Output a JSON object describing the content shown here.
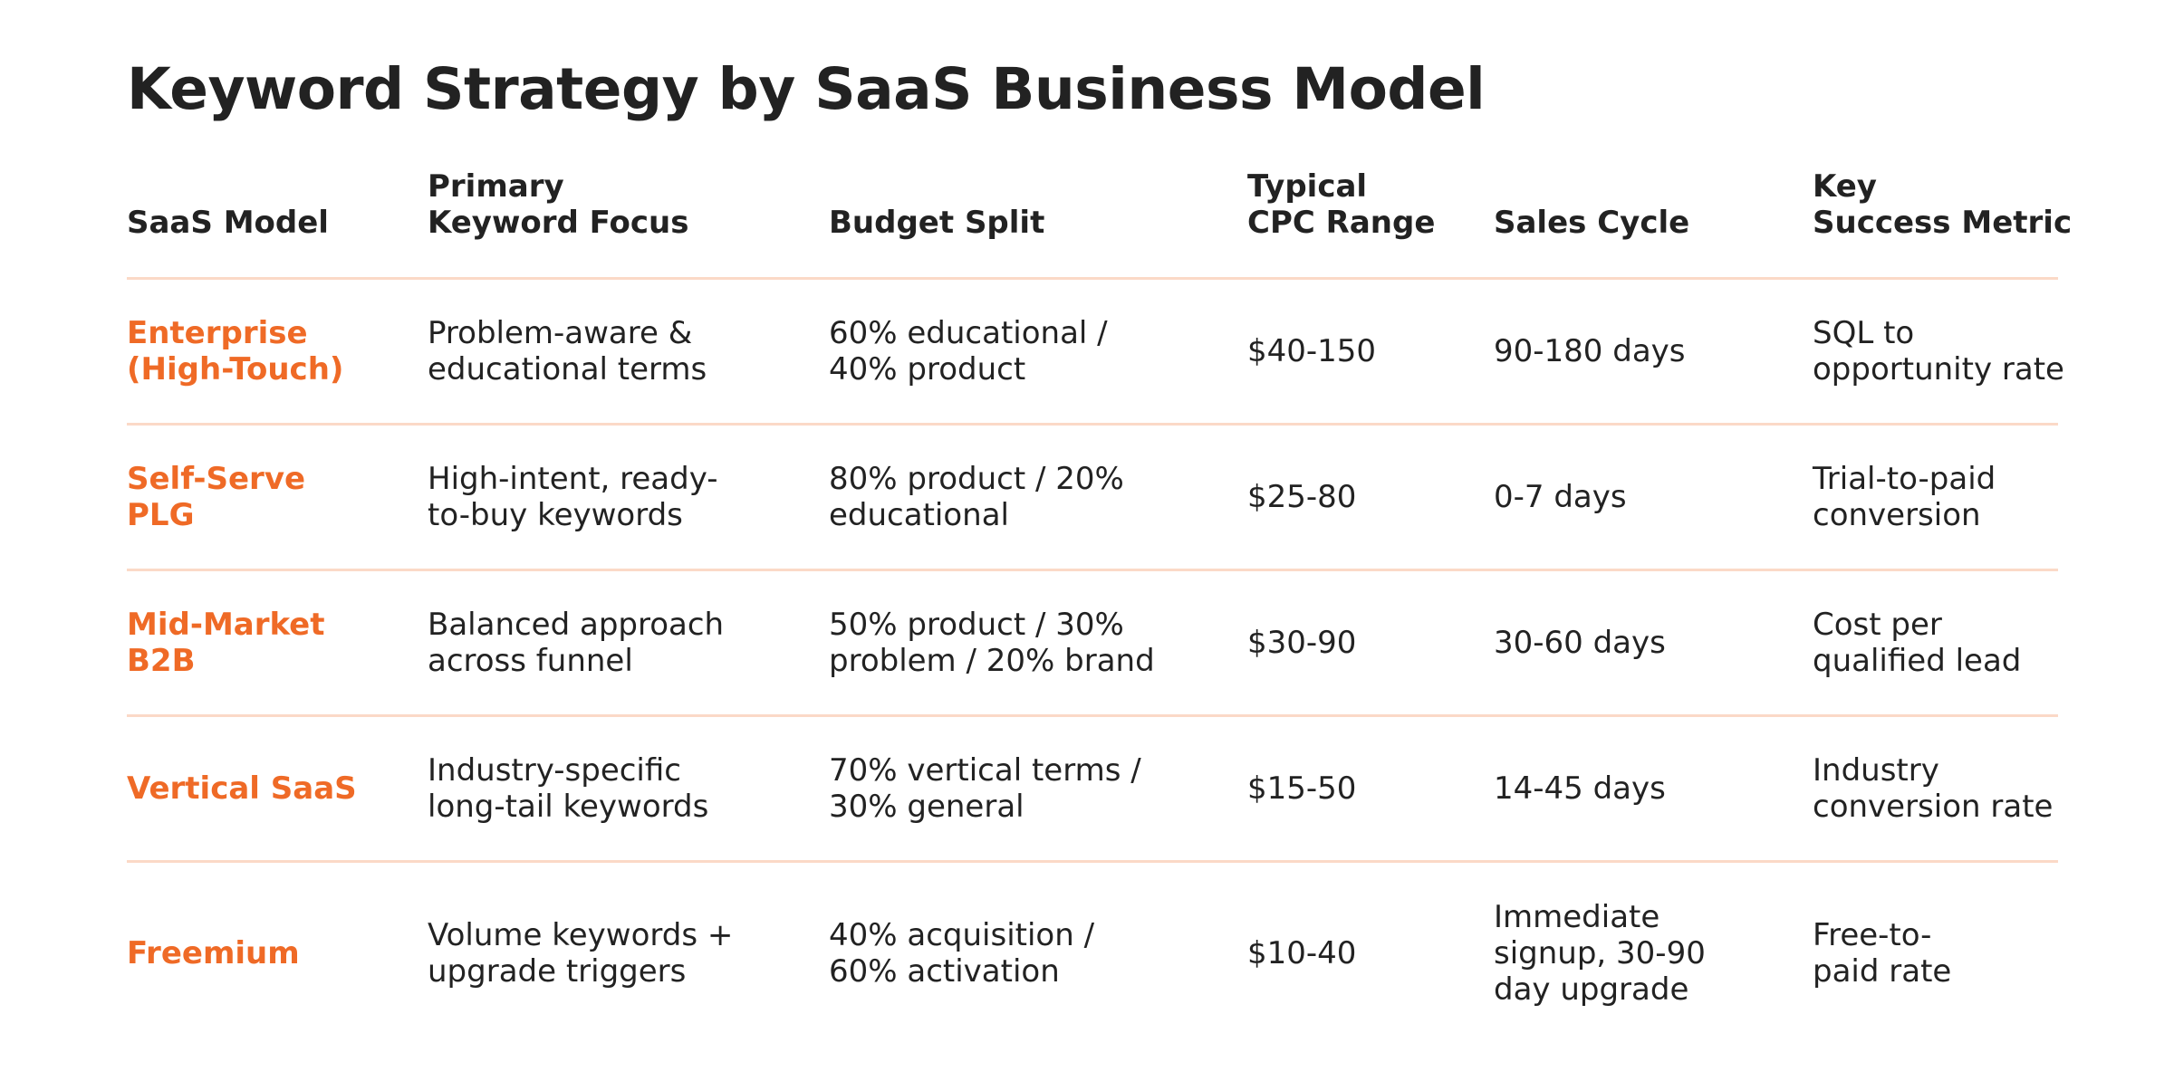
{
  "title": "Keyword Strategy by SaaS Business Model",
  "columns": [
    [
      "SaaS Model"
    ],
    [
      "Primary",
      "Keyword Focus"
    ],
    [
      "Budget Split"
    ],
    [
      "Typical",
      "CPC Range"
    ],
    [
      "Sales Cycle"
    ],
    [
      "Key",
      "Success Metric"
    ]
  ],
  "rows": [
    {
      "model": [
        "Enterprise",
        "(High-Touch)"
      ],
      "focus": [
        "Problem-aware &",
        "educational terms"
      ],
      "budget": [
        "60% educational /",
        "40% product"
      ],
      "cpc": [
        "$40-150"
      ],
      "cycle": [
        "90-180 days"
      ],
      "metric": [
        "SQL to",
        "opportunity rate"
      ]
    },
    {
      "model": [
        "Self-Serve",
        "PLG"
      ],
      "focus": [
        "High-intent, ready-",
        "to-buy keywords"
      ],
      "budget": [
        "80% product / 20%",
        "educational"
      ],
      "cpc": [
        "$25-80"
      ],
      "cycle": [
        "0-7 days"
      ],
      "metric": [
        "Trial-to-paid",
        "conversion"
      ]
    },
    {
      "model": [
        "Mid-Market",
        "B2B"
      ],
      "focus": [
        "Balanced approach",
        "across funnel"
      ],
      "budget": [
        "50% product / 30%",
        "problem / 20% brand"
      ],
      "cpc": [
        "$30-90"
      ],
      "cycle": [
        "30-60 days"
      ],
      "metric": [
        "Cost per",
        "qualified lead"
      ]
    },
    {
      "model": [
        "Vertical SaaS"
      ],
      "focus": [
        "Industry-specific",
        "long-tail keywords"
      ],
      "budget": [
        "70% vertical terms /",
        "30% general"
      ],
      "cpc": [
        "$15-50"
      ],
      "cycle": [
        "14-45 days"
      ],
      "metric": [
        "Industry",
        "conversion rate"
      ]
    },
    {
      "model": [
        "Freemium"
      ],
      "focus": [
        "Volume keywords +",
        "upgrade triggers"
      ],
      "budget": [
        "40% acquisition /",
        "60% activation"
      ],
      "cpc": [
        "$10-40"
      ],
      "cycle": [
        "Immediate",
        "signup, 30-90",
        "day upgrade"
      ],
      "metric": [
        "Free-to-",
        "paid rate"
      ]
    }
  ],
  "colors": {
    "accent": "#ef6a26",
    "rule": "#fbd9c7",
    "text": "#222222"
  }
}
